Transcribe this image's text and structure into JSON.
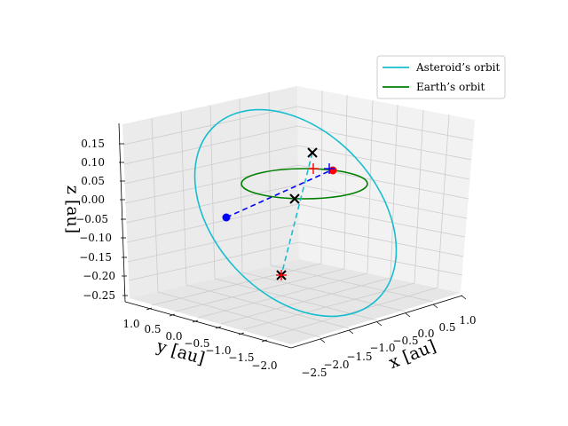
{
  "chart_data": {
    "type": "line3d",
    "title": "",
    "axes": {
      "x": {
        "label": "x [au]",
        "ticks": [
          "−2.5",
          "−2.0",
          "−1.5",
          "−1.0",
          "−0.5",
          "0.0",
          "0.5",
          "1.0"
        ],
        "range": [
          -2.5,
          1.0
        ]
      },
      "y": {
        "label": "y [au]",
        "ticks": [
          "1.0",
          "0.5",
          "0.0",
          "−0.5",
          "−1.0",
          "−1.5",
          "−2.0"
        ],
        "range": [
          -2.0,
          1.0
        ]
      },
      "z": {
        "label": "z [au]",
        "ticks": [
          "0.15",
          "0.10",
          "0.05",
          "0.00",
          "−0.05",
          "−0.10",
          "−0.15",
          "−0.20",
          "−0.25"
        ],
        "range": [
          -0.25,
          0.15
        ]
      }
    },
    "grid": true,
    "series": [
      {
        "name": "Asteroid’s orbit",
        "kind": "ellipse",
        "color": "#17becf",
        "center": [
          -0.6,
          -0.6,
          -0.05
        ],
        "semi_axes": [
          1.6,
          1.4
        ],
        "tilt": "inclined"
      },
      {
        "name": "Earth’s orbit",
        "kind": "circle",
        "color": "#008000",
        "center": [
          0.0,
          0.0,
          0.0
        ],
        "radius": 1.0
      }
    ],
    "markers": [
      {
        "kind": "x",
        "color": "#000000",
        "xyz": [
          0.0,
          0.0,
          0.0
        ]
      },
      {
        "kind": "x",
        "color": "#000000",
        "xyz": [
          0.6,
          0.6,
          0.12
        ]
      },
      {
        "kind": "x",
        "color": "#000000",
        "xyz": [
          -1.2,
          -1.6,
          -0.22
        ]
      },
      {
        "kind": "+",
        "color": "#ff0000",
        "xyz": [
          -1.2,
          -1.6,
          -0.22
        ]
      },
      {
        "kind": "dot",
        "color": "#0000ff",
        "xyz": [
          -1.6,
          -0.2,
          -0.05
        ]
      },
      {
        "kind": "dot",
        "color": "#ff0000",
        "xyz": [
          0.9,
          0.5,
          0.03
        ]
      },
      {
        "kind": "+",
        "color": "#0000ff",
        "xyz": [
          0.85,
          0.5,
          0.03
        ]
      },
      {
        "kind": "+",
        "color": "#ff0000",
        "xyz": [
          0.6,
          0.55,
          0.03
        ]
      }
    ],
    "connectors": [
      {
        "style": "dashed",
        "color": "#0000ff",
        "from": [
          -1.6,
          -0.2,
          -0.05
        ],
        "to": [
          0.9,
          0.5,
          0.03
        ]
      },
      {
        "style": "dashed",
        "color": "#17becf",
        "from": [
          0.6,
          0.6,
          0.12
        ],
        "to": [
          -1.2,
          -1.6,
          -0.22
        ]
      }
    ],
    "legend": {
      "placement": "top-right"
    }
  },
  "colors": {
    "asteroid": "#17becf",
    "earth": "#008000",
    "pane_left": "#ebebeb",
    "pane_right": "#f2f2f2",
    "pane_floor": "#e6e6e6",
    "grid": "#cccccc"
  }
}
